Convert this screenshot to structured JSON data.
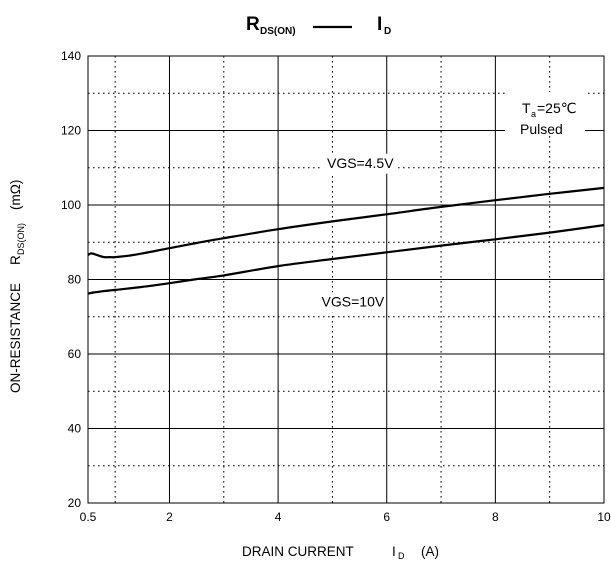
{
  "chart_data": {
    "type": "line",
    "title": {
      "lhs_main": "R",
      "lhs_sub": "DS(ON)",
      "dash": "—",
      "rhs_main": "I",
      "rhs_sub": "D"
    },
    "xlabel": {
      "prefix": "DRAIN CURRENT",
      "main": "I",
      "sub": "D",
      "unit": "(A)"
    },
    "ylabel": {
      "prefix": "ON-RESISTANCE",
      "main": "R",
      "sub": "DS(ON)",
      "unit": "(mΩ)"
    },
    "xlim": [
      0.5,
      10
    ],
    "ylim": [
      20,
      140
    ],
    "x_ticks": [
      {
        "value": 0.5,
        "label": "0.5"
      },
      {
        "value": 2,
        "label": "2"
      },
      {
        "value": 4,
        "label": "4"
      },
      {
        "value": 6,
        "label": "6"
      },
      {
        "value": 8,
        "label": "8"
      },
      {
        "value": 10,
        "label": "10"
      }
    ],
    "x_dotted_grid": [
      1,
      3,
      5,
      7,
      9
    ],
    "y_ticks": [
      {
        "value": 20,
        "label": "20"
      },
      {
        "value": 40,
        "label": "40"
      },
      {
        "value": 60,
        "label": "60"
      },
      {
        "value": 80,
        "label": "80"
      },
      {
        "value": 100,
        "label": "100"
      },
      {
        "value": 120,
        "label": "120"
      },
      {
        "value": 140,
        "label": "140"
      }
    ],
    "y_dotted_grid": [
      30,
      50,
      70,
      90,
      110,
      130
    ],
    "conditions": {
      "ta_main": "T",
      "ta_sub": "a",
      "ta_value": "=25℃",
      "mode": "Pulsed"
    },
    "series": [
      {
        "name": "VGS=4.5V",
        "x": [
          0.5,
          0.55,
          0.6,
          0.7,
          0.8,
          0.9,
          1.0,
          1.25,
          1.5,
          2.0,
          2.5,
          3.0,
          4.0,
          5.0,
          6.0,
          7.0,
          8.0,
          9.0,
          10.0
        ],
        "y": [
          86.6,
          87.0,
          86.9,
          86.4,
          86.0,
          86.0,
          86.0,
          86.4,
          87.0,
          88.4,
          89.8,
          91.1,
          93.5,
          95.6,
          97.5,
          99.5,
          101.3,
          103.0,
          104.6
        ]
      },
      {
        "name": "VGS=10V",
        "x": [
          0.5,
          0.6,
          0.8,
          1.0,
          1.5,
          2.0,
          2.5,
          3.0,
          4.0,
          5.0,
          6.0,
          7.0,
          8.0,
          9.0,
          10.0
        ],
        "y": [
          76.2,
          76.5,
          76.9,
          77.2,
          78.0,
          79.0,
          80.1,
          81.1,
          83.6,
          85.5,
          87.3,
          89.1,
          90.8,
          92.6,
          94.6
        ]
      }
    ],
    "annotations": [
      {
        "series": 0,
        "label": "VGS=4.5V",
        "at_x": 4.9,
        "at_y": 110
      },
      {
        "series": 1,
        "label": "VGS=10V",
        "at_x": 4.8,
        "at_y": 72.8
      }
    ]
  }
}
